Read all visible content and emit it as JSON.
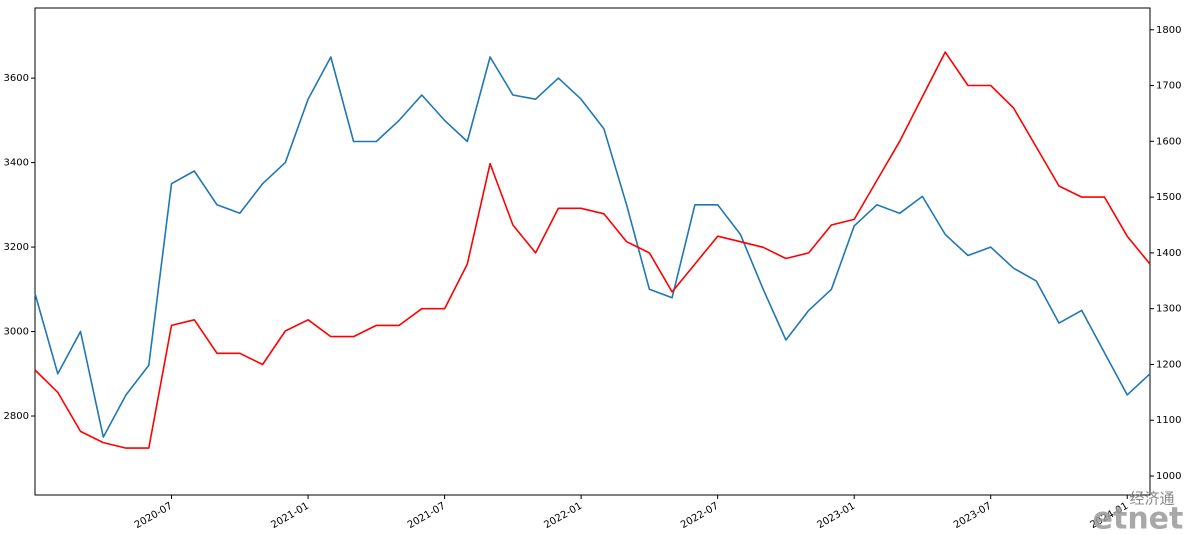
{
  "chart_data": {
    "type": "line",
    "x": [
      "2020-01",
      "2020-02",
      "2020-03",
      "2020-04",
      "2020-05",
      "2020-06",
      "2020-07",
      "2020-08",
      "2020-09",
      "2020-10",
      "2020-11",
      "2020-12",
      "2021-01",
      "2021-02",
      "2021-03",
      "2021-04",
      "2021-05",
      "2021-06",
      "2021-07",
      "2021-08",
      "2021-09",
      "2021-10",
      "2021-11",
      "2021-12",
      "2022-01",
      "2022-02",
      "2022-03",
      "2022-04",
      "2022-05",
      "2022-06",
      "2022-07",
      "2022-08",
      "2022-09",
      "2022-10",
      "2022-11",
      "2022-12",
      "2023-01",
      "2023-02",
      "2023-03",
      "2023-04",
      "2023-05",
      "2023-06",
      "2023-07",
      "2023-08",
      "2023-09",
      "2023-10",
      "2023-11",
      "2023-12",
      "2024-01",
      "2024-02"
    ],
    "series": [
      {
        "color": "#1f77b4",
        "axis": "y",
        "values": [
          3090,
          2900,
          3000,
          2750,
          2850,
          2920,
          3350,
          3380,
          3300,
          3280,
          3350,
          3400,
          3550,
          3650,
          3450,
          3450,
          3500,
          3560,
          3500,
          3450,
          3650,
          3560,
          3550,
          3600,
          3550,
          3480,
          3300,
          3100,
          3080,
          3300,
          3300,
          3230,
          3100,
          2980,
          3050,
          3100,
          3250,
          3300,
          3280,
          3320,
          3230,
          3180,
          3200,
          3150,
          3120,
          3020,
          3050,
          2950,
          2850,
          2900
        ]
      },
      {
        "color": "#ff0000",
        "axis": "y2",
        "values": [
          1190,
          1150,
          1080,
          1060,
          1050,
          1050,
          1270,
          1280,
          1220,
          1220,
          1200,
          1260,
          1280,
          1250,
          1250,
          1270,
          1270,
          1300,
          1300,
          1380,
          1560,
          1450,
          1400,
          1480,
          1480,
          1470,
          1420,
          1400,
          1330,
          1380,
          1430,
          1420,
          1410,
          1390,
          1400,
          1450,
          1460,
          1530,
          1600,
          1680,
          1760,
          1700,
          1700,
          1660,
          1590,
          1520,
          1500,
          1500,
          1430,
          1380
        ]
      }
    ],
    "xlim": [
      "2020-01",
      "2024-02"
    ],
    "xticks": [
      "2020-07",
      "2021-01",
      "2021-07",
      "2022-01",
      "2022-07",
      "2023-01",
      "2023-07",
      "2024-01"
    ],
    "ylim": [
      2613,
      3766
    ],
    "yticks": [
      2800,
      3000,
      3200,
      3400,
      3600
    ],
    "y2lim": [
      966,
      1839
    ],
    "y2ticks": [
      1000,
      1100,
      1200,
      1300,
      1400,
      1500,
      1600,
      1700,
      1800
    ],
    "grid": false,
    "watermark": [
      "经济通",
      "etnet"
    ]
  }
}
